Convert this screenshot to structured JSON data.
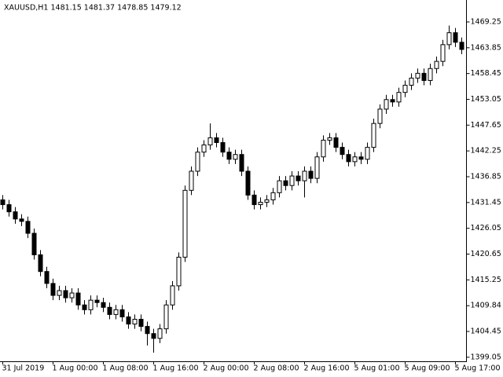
{
  "chart_data": {
    "type": "candlestick",
    "title": "XAUUSD,H1  1481.15 1481.37 1478.85 1479.12",
    "categories": [
      "31 Jul 2019",
      null,
      null,
      null,
      null,
      null,
      null,
      null,
      "1 Aug 00:00",
      null,
      null,
      null,
      null,
      null,
      null,
      null,
      "1 Aug 08:00",
      null,
      null,
      null,
      null,
      null,
      null,
      null,
      "1 Aug 16:00",
      null,
      null,
      null,
      null,
      null,
      null,
      null,
      "2 Aug 00:00",
      null,
      null,
      null,
      null,
      null,
      null,
      null,
      "2 Aug 08:00",
      null,
      null,
      null,
      null,
      null,
      null,
      null,
      "2 Aug 16:00",
      null,
      null,
      null,
      null,
      null,
      null,
      null,
      "5 Aug 01:00",
      null,
      null,
      null,
      null,
      null,
      null,
      null,
      "5 Aug 09:00",
      null,
      null,
      null,
      null,
      null,
      null,
      null,
      "5 Aug 17:00",
      null
    ],
    "open": [
      1432.0,
      1431.0,
      1429.5,
      1428.0,
      1427.5,
      1425.0,
      1420.5,
      1417.0,
      1414.5,
      1412.0,
      1413.0,
      1411.5,
      1412.5,
      1410.0,
      1409.0,
      1411.0,
      1410.5,
      1409.5,
      1408.0,
      1409.0,
      1407.5,
      1406.0,
      1407.0,
      1405.5,
      1404.0,
      1403.0,
      1405.0,
      1410.0,
      1414.0,
      1420.0,
      1434.0,
      1438.0,
      1442.0,
      1443.5,
      1445.0,
      1444.0,
      1442.0,
      1440.5,
      1441.5,
      1438.0,
      1433.0,
      1431.0,
      1431.5,
      1432.0,
      1433.5,
      1436.0,
      1435.0,
      1437.0,
      1436.0,
      1438.0,
      1436.5,
      1441.0,
      1444.5,
      1445.0,
      1443.0,
      1441.5,
      1440.0,
      1441.0,
      1440.5,
      1443.0,
      1448.0,
      1451.0,
      1453.0,
      1452.5,
      1454.5,
      1456.0,
      1457.5,
      1458.5,
      1457.0,
      1459.5,
      1461.0,
      1464.5,
      1467.0,
      1465.0
    ],
    "high": [
      1433.0,
      1432.0,
      1430.5,
      1429.0,
      1428.5,
      1426.0,
      1421.5,
      1418.0,
      1415.5,
      1414.0,
      1414.0,
      1413.5,
      1413.5,
      1411.0,
      1412.0,
      1412.0,
      1411.5,
      1410.5,
      1410.0,
      1410.0,
      1408.5,
      1408.0,
      1408.0,
      1406.5,
      1405.0,
      1406.0,
      1411.0,
      1415.0,
      1421.0,
      1435.0,
      1439.0,
      1443.0,
      1444.5,
      1448.0,
      1446.0,
      1445.0,
      1443.0,
      1442.5,
      1442.5,
      1439.0,
      1434.0,
      1432.5,
      1433.0,
      1434.5,
      1437.0,
      1437.0,
      1438.0,
      1438.0,
      1439.0,
      1439.0,
      1442.0,
      1445.5,
      1446.0,
      1446.0,
      1444.0,
      1442.5,
      1442.0,
      1442.0,
      1444.0,
      1449.0,
      1452.0,
      1454.0,
      1454.0,
      1455.5,
      1457.0,
      1458.5,
      1459.5,
      1459.5,
      1460.5,
      1462.0,
      1465.5,
      1468.5,
      1468.0,
      1466.0
    ],
    "low": [
      1430.0,
      1428.5,
      1427.0,
      1426.5,
      1424.0,
      1419.5,
      1416.0,
      1413.5,
      1411.0,
      1411.0,
      1410.5,
      1410.5,
      1409.0,
      1408.0,
      1408.0,
      1409.5,
      1408.5,
      1407.0,
      1407.0,
      1406.5,
      1405.0,
      1405.0,
      1404.5,
      1401.5,
      1400.0,
      1402.0,
      1404.0,
      1409.0,
      1413.0,
      1419.0,
      1433.0,
      1437.0,
      1441.0,
      1442.5,
      1443.0,
      1441.0,
      1439.5,
      1439.5,
      1437.0,
      1432.0,
      1430.0,
      1430.0,
      1430.5,
      1431.0,
      1432.5,
      1434.0,
      1434.0,
      1435.0,
      1432.5,
      1435.5,
      1435.5,
      1440.0,
      1443.5,
      1442.0,
      1440.5,
      1439.0,
      1439.0,
      1439.5,
      1439.5,
      1442.0,
      1447.0,
      1450.0,
      1451.5,
      1451.5,
      1453.5,
      1455.0,
      1456.5,
      1456.0,
      1456.0,
      1458.5,
      1460.0,
      1463.5,
      1464.0,
      1462.5
    ],
    "close": [
      1431.0,
      1429.5,
      1428.0,
      1427.5,
      1425.0,
      1420.5,
      1417.0,
      1414.5,
      1412.0,
      1413.0,
      1411.5,
      1412.5,
      1410.0,
      1409.0,
      1411.0,
      1410.5,
      1409.5,
      1408.0,
      1409.0,
      1407.5,
      1406.0,
      1407.0,
      1405.5,
      1404.0,
      1403.0,
      1405.0,
      1410.0,
      1414.0,
      1420.0,
      1434.0,
      1438.0,
      1442.0,
      1443.5,
      1445.0,
      1444.0,
      1442.0,
      1440.5,
      1441.5,
      1438.0,
      1433.0,
      1431.0,
      1431.5,
      1432.0,
      1433.5,
      1436.0,
      1435.0,
      1437.0,
      1436.0,
      1438.0,
      1436.5,
      1441.0,
      1444.5,
      1445.0,
      1443.0,
      1441.5,
      1440.0,
      1441.0,
      1440.5,
      1443.0,
      1448.0,
      1451.0,
      1453.0,
      1452.5,
      1454.5,
      1456.0,
      1457.5,
      1458.5,
      1457.0,
      1459.5,
      1461.0,
      1464.5,
      1467.0,
      1465.0,
      1463.5
    ],
    "up_color": "#ffffff",
    "down_color": "#000000",
    "wick_color": "#000000",
    "ylim": [
      1398.2,
      1473.85
    ],
    "yticks": [
      1399.05,
      1404.45,
      1409.84,
      1415.25,
      1420.65,
      1426.05,
      1431.45,
      1436.85,
      1442.25,
      1447.65,
      1453.05,
      1458.45,
      1463.85,
      1469.25
    ]
  }
}
